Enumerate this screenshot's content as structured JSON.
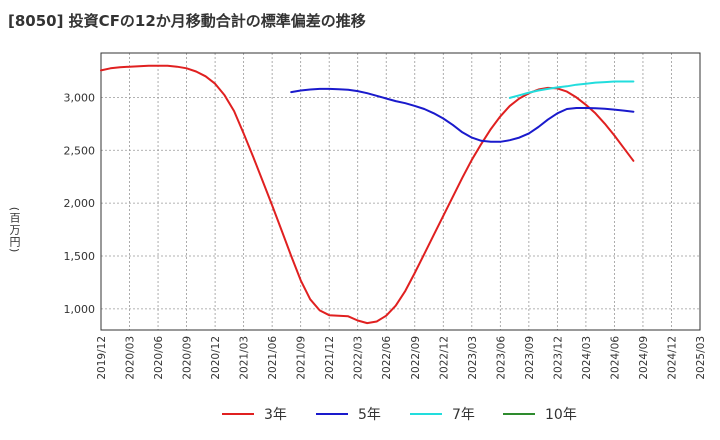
{
  "title": "[8050]  投資CFの12か月移動合計の標準偏差の推移",
  "chart_data": {
    "type": "line",
    "title": "[8050]  投資CFの12か月移動合計の標準偏差の推移",
    "ylabel": "(百万円)",
    "xlabel": "",
    "ylim": [
      800,
      3420
    ],
    "yticks": [
      1000,
      1500,
      2000,
      2500,
      3000
    ],
    "ytick_labels": [
      "1,000",
      "1,500",
      "2,000",
      "2,500",
      "3,000"
    ],
    "x_tick_labels": [
      "2019/12",
      "2020/03",
      "2020/06",
      "2020/09",
      "2020/12",
      "2021/03",
      "2021/06",
      "2021/09",
      "2021/12",
      "2022/03",
      "2022/06",
      "2022/09",
      "2022/12",
      "2023/03",
      "2023/06",
      "2023/09",
      "2023/12",
      "2024/03",
      "2024/06",
      "2024/09",
      "2024/12",
      "2025/03"
    ],
    "grid": true,
    "legend_position": "bottom",
    "series": [
      {
        "name": "3年",
        "color": "#e02020",
        "points": [
          [
            "2019/12",
            3255
          ],
          [
            "2020/01",
            3275
          ],
          [
            "2020/02",
            3285
          ],
          [
            "2020/03",
            3290
          ],
          [
            "2020/04",
            3295
          ],
          [
            "2020/05",
            3300
          ],
          [
            "2020/06",
            3300
          ],
          [
            "2020/07",
            3300
          ],
          [
            "2020/08",
            3290
          ],
          [
            "2020/09",
            3275
          ],
          [
            "2020/10",
            3245
          ],
          [
            "2020/11",
            3200
          ],
          [
            "2020/12",
            3130
          ],
          [
            "2021/01",
            3020
          ],
          [
            "2021/02",
            2870
          ],
          [
            "2021/03",
            2660
          ],
          [
            "2021/04",
            2440
          ],
          [
            "2021/05",
            2210
          ],
          [
            "2021/06",
            1980
          ],
          [
            "2021/07",
            1740
          ],
          [
            "2021/08",
            1500
          ],
          [
            "2021/09",
            1270
          ],
          [
            "2021/10",
            1090
          ],
          [
            "2021/11",
            985
          ],
          [
            "2021/12",
            940
          ],
          [
            "2022/01",
            935
          ],
          [
            "2022/02",
            930
          ],
          [
            "2022/03",
            890
          ],
          [
            "2022/04",
            865
          ],
          [
            "2022/05",
            880
          ],
          [
            "2022/06",
            935
          ],
          [
            "2022/07",
            1030
          ],
          [
            "2022/08",
            1170
          ],
          [
            "2022/09",
            1340
          ],
          [
            "2022/10",
            1520
          ],
          [
            "2022/11",
            1700
          ],
          [
            "2022/12",
            1880
          ],
          [
            "2023/01",
            2060
          ],
          [
            "2023/02",
            2240
          ],
          [
            "2023/03",
            2410
          ],
          [
            "2023/04",
            2560
          ],
          [
            "2023/05",
            2700
          ],
          [
            "2023/06",
            2820
          ],
          [
            "2023/07",
            2920
          ],
          [
            "2023/08",
            2990
          ],
          [
            "2023/09",
            3040
          ],
          [
            "2023/10",
            3075
          ],
          [
            "2023/11",
            3090
          ],
          [
            "2023/12",
            3085
          ],
          [
            "2024/01",
            3055
          ],
          [
            "2024/02",
            3000
          ],
          [
            "2024/03",
            2930
          ],
          [
            "2024/04",
            2850
          ],
          [
            "2024/05",
            2750
          ],
          [
            "2024/06",
            2640
          ],
          [
            "2024/07",
            2520
          ],
          [
            "2024/08",
            2400
          ]
        ]
      },
      {
        "name": "5年",
        "color": "#1a1acc",
        "points": [
          [
            "2021/08",
            3050
          ],
          [
            "2021/09",
            3065
          ],
          [
            "2021/10",
            3075
          ],
          [
            "2021/11",
            3080
          ],
          [
            "2021/12",
            3080
          ],
          [
            "2022/01",
            3078
          ],
          [
            "2022/02",
            3072
          ],
          [
            "2022/03",
            3060
          ],
          [
            "2022/04",
            3040
          ],
          [
            "2022/05",
            3015
          ],
          [
            "2022/06",
            2990
          ],
          [
            "2022/07",
            2965
          ],
          [
            "2022/08",
            2945
          ],
          [
            "2022/09",
            2920
          ],
          [
            "2022/10",
            2890
          ],
          [
            "2022/11",
            2850
          ],
          [
            "2022/12",
            2800
          ],
          [
            "2023/01",
            2740
          ],
          [
            "2023/02",
            2670
          ],
          [
            "2023/03",
            2620
          ],
          [
            "2023/04",
            2590
          ],
          [
            "2023/05",
            2580
          ],
          [
            "2023/06",
            2580
          ],
          [
            "2023/07",
            2595
          ],
          [
            "2023/08",
            2620
          ],
          [
            "2023/09",
            2660
          ],
          [
            "2023/10",
            2720
          ],
          [
            "2023/11",
            2790
          ],
          [
            "2023/12",
            2850
          ],
          [
            "2024/01",
            2890
          ],
          [
            "2024/02",
            2900
          ],
          [
            "2024/03",
            2900
          ],
          [
            "2024/04",
            2898
          ],
          [
            "2024/05",
            2892
          ],
          [
            "2024/06",
            2885
          ],
          [
            "2024/07",
            2875
          ],
          [
            "2024/08",
            2865
          ]
        ]
      },
      {
        "name": "7年",
        "color": "#22dddd",
        "points": [
          [
            "2023/07",
            2995
          ],
          [
            "2023/08",
            3020
          ],
          [
            "2023/09",
            3045
          ],
          [
            "2023/10",
            3065
          ],
          [
            "2023/11",
            3080
          ],
          [
            "2023/12",
            3095
          ],
          [
            "2024/01",
            3105
          ],
          [
            "2024/02",
            3120
          ],
          [
            "2024/03",
            3130
          ],
          [
            "2024/04",
            3140
          ],
          [
            "2024/05",
            3145
          ],
          [
            "2024/06",
            3150
          ],
          [
            "2024/07",
            3150
          ],
          [
            "2024/08",
            3150
          ]
        ]
      },
      {
        "name": "10年",
        "color": "#2e8b2e",
        "points": []
      }
    ]
  }
}
